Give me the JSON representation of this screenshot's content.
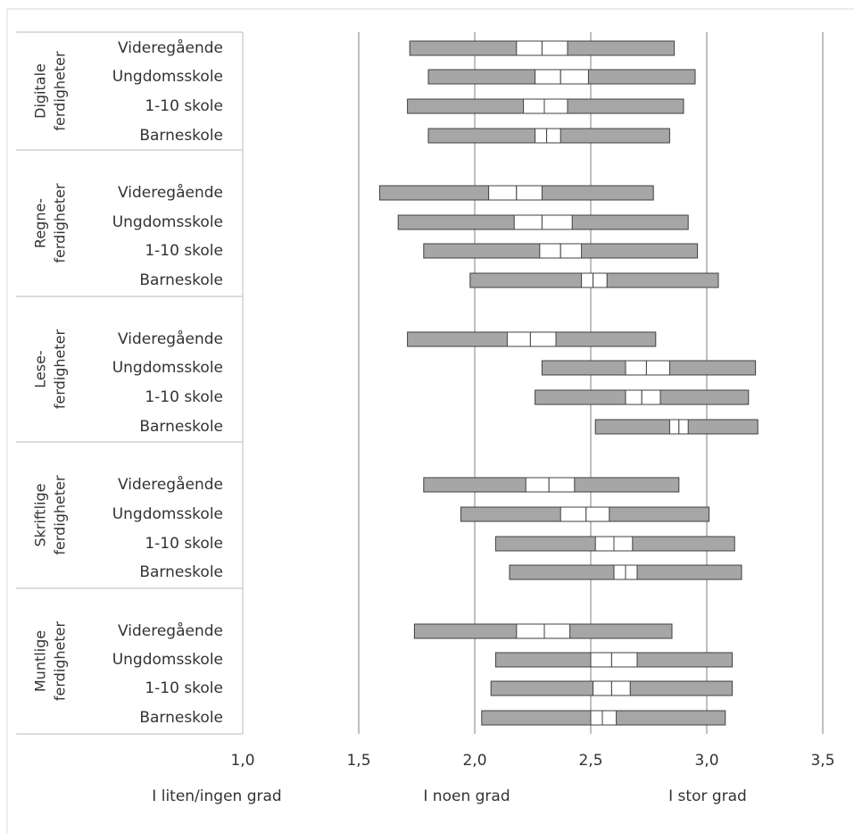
{
  "chart_data": {
    "type": "bar",
    "subtype": "floating-range-with-median-box",
    "xlim": [
      1.0,
      3.5
    ],
    "x_ticks": [
      "1,0",
      "1,5",
      "2,0",
      "2,5",
      "3,0",
      "3,5"
    ],
    "x_tick_values": [
      1.0,
      1.5,
      2.0,
      2.5,
      3.0,
      3.5
    ],
    "x_category_labels": [
      "I liten/ingen grad",
      "I noen grad",
      "I stor grad"
    ],
    "grid": "vertical",
    "colors": {
      "range": "#a6a6a6",
      "middle": "#ffffff",
      "outline": "#404040",
      "grid": "#808080",
      "text": "#333333"
    },
    "groups": [
      {
        "label_lines": [
          "Digitale",
          "ferdigheter"
        ],
        "rows": [
          {
            "label": "Videregående",
            "min": 1.72,
            "q1": 2.18,
            "median": 2.29,
            "q3": 2.4,
            "max": 2.86
          },
          {
            "label": "Ungdomsskole",
            "min": 1.8,
            "q1": 2.26,
            "median": 2.37,
            "q3": 2.49,
            "max": 2.95
          },
          {
            "label": "1-10 skole",
            "min": 1.71,
            "q1": 2.21,
            "median": 2.3,
            "q3": 2.4,
            "max": 2.9
          },
          {
            "label": "Barneskole",
            "min": 1.8,
            "q1": 2.26,
            "median": 2.31,
            "q3": 2.37,
            "max": 2.84
          }
        ]
      },
      {
        "label_lines": [
          "Regne-",
          "ferdigheter"
        ],
        "rows": [
          {
            "label": "Videregående",
            "min": 1.59,
            "q1": 2.06,
            "median": 2.18,
            "q3": 2.29,
            "max": 2.77
          },
          {
            "label": "Ungdomsskole",
            "min": 1.67,
            "q1": 2.17,
            "median": 2.29,
            "q3": 2.42,
            "max": 2.92
          },
          {
            "label": "1-10 skole",
            "min": 1.78,
            "q1": 2.28,
            "median": 2.37,
            "q3": 2.46,
            "max": 2.96
          },
          {
            "label": "Barneskole",
            "min": 1.98,
            "q1": 2.46,
            "median": 2.51,
            "q3": 2.57,
            "max": 3.05
          }
        ]
      },
      {
        "label_lines": [
          "Lese-",
          "ferdigheter"
        ],
        "rows": [
          {
            "label": "Videregående",
            "min": 1.71,
            "q1": 2.14,
            "median": 2.24,
            "q3": 2.35,
            "max": 2.78
          },
          {
            "label": "Ungdomsskole",
            "min": 2.29,
            "q1": 2.65,
            "median": 2.74,
            "q3": 2.84,
            "max": 3.21
          },
          {
            "label": "1-10 skole",
            "min": 2.26,
            "q1": 2.65,
            "median": 2.72,
            "q3": 2.8,
            "max": 3.18
          },
          {
            "label": "Barneskole",
            "min": 2.52,
            "q1": 2.84,
            "median": 2.88,
            "q3": 2.92,
            "max": 3.22
          }
        ]
      },
      {
        "label_lines": [
          "Skriftlige",
          "ferdigheter"
        ],
        "rows": [
          {
            "label": "Videregående",
            "min": 1.78,
            "q1": 2.22,
            "median": 2.32,
            "q3": 2.43,
            "max": 2.88
          },
          {
            "label": "Ungdomsskole",
            "min": 1.94,
            "q1": 2.37,
            "median": 2.48,
            "q3": 2.58,
            "max": 3.01
          },
          {
            "label": "1-10 skole",
            "min": 2.09,
            "q1": 2.52,
            "median": 2.6,
            "q3": 2.68,
            "max": 3.12
          },
          {
            "label": "Barneskole",
            "min": 2.15,
            "q1": 2.6,
            "median": 2.65,
            "q3": 2.7,
            "max": 3.15
          }
        ]
      },
      {
        "label_lines": [
          "Muntlige",
          "ferdigheter"
        ],
        "rows": [
          {
            "label": "Videregående",
            "min": 1.74,
            "q1": 2.18,
            "median": 2.3,
            "q3": 2.41,
            "max": 2.85
          },
          {
            "label": "Ungdomsskole",
            "min": 2.09,
            "q1": 2.5,
            "median": 2.59,
            "q3": 2.7,
            "max": 3.11
          },
          {
            "label": "1-10 skole",
            "min": 2.07,
            "q1": 2.51,
            "median": 2.59,
            "q3": 2.67,
            "max": 3.11
          },
          {
            "label": "Barneskole",
            "min": 2.03,
            "q1": 2.5,
            "median": 2.55,
            "q3": 2.61,
            "max": 3.08
          }
        ]
      }
    ]
  }
}
